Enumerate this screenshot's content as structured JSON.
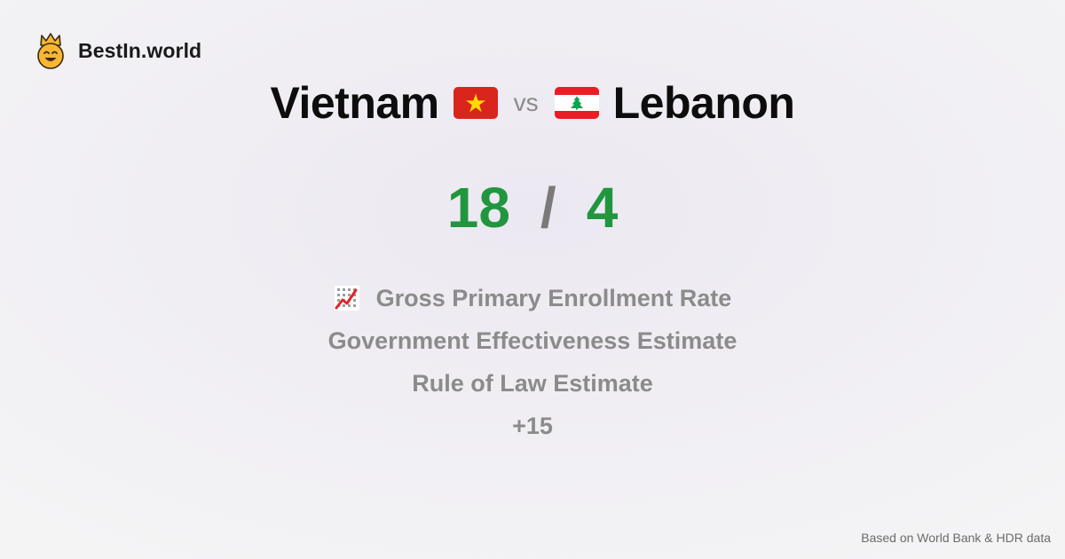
{
  "brand": {
    "name": "BestIn.world",
    "logo_icon": "crowned-smiley-icon"
  },
  "comparison": {
    "country_a": "Vietnam",
    "country_a_flag": "vietnam-flag-icon",
    "vs_label": "vs",
    "country_b": "Lebanon",
    "country_b_flag": "lebanon-flag-icon"
  },
  "score": {
    "a": "18",
    "separator": "/",
    "b": "4",
    "color": "#21963f"
  },
  "metrics": [
    {
      "label": "Gross Primary Enrollment Rate",
      "icon": "chart-increasing-icon"
    },
    {
      "label": "Government Effectiveness Estimate"
    },
    {
      "label": "Rule of Law Estimate"
    },
    {
      "label": "+15"
    }
  ],
  "footer": {
    "source": "Based on World Bank & HDR data"
  }
}
